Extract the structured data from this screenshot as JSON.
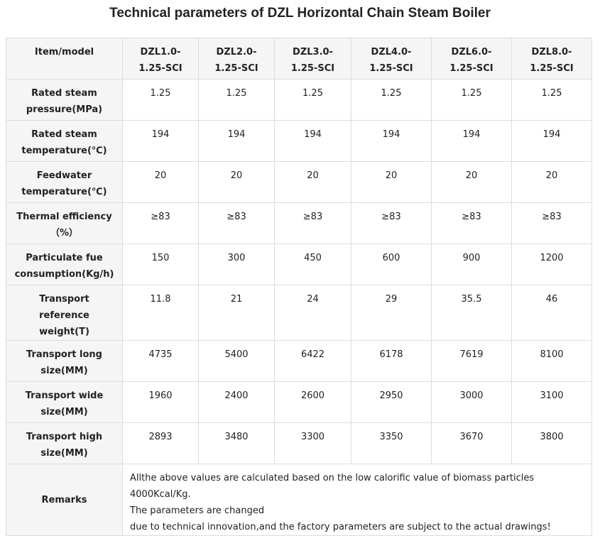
{
  "title": "Technical parameters of DZL Horizontal Chain Steam Boiler",
  "table": {
    "header": [
      "Item/model",
      "DZL1.0-1.25-SCI",
      "DZL2.0-1.25-SCI",
      "DZL3.0-1.25-SCI",
      "DZL4.0-1.25-SCI",
      "DZL6.0-1.25-SCI",
      "DZL8.0-1.25-SCI"
    ],
    "rows": [
      [
        "Rated steam pressure(MPa)",
        "1.25",
        "1.25",
        "1.25",
        "1.25",
        "1.25",
        "1.25"
      ],
      [
        "Rated steam temperature(℃)",
        "194",
        "194",
        "194",
        "194",
        "194",
        "194"
      ],
      [
        "Feedwater temperature(℃)",
        "20",
        "20",
        "20",
        "20",
        "20",
        "20"
      ],
      [
        "Thermal efficiency（%）",
        "≥83",
        "≥83",
        "≥83",
        "≥83",
        "≥83",
        "≥83"
      ],
      [
        "Particulate fue consumption(Kg/h)",
        "150",
        "300",
        "450",
        "600",
        "900",
        "1200"
      ],
      [
        "Transport reference weight(T)",
        "11.8",
        "21",
        "24",
        "29",
        "35.5",
        "46"
      ],
      [
        "Transport long size(MM)",
        "4735",
        "5400",
        "6422",
        "6178",
        "7619",
        "8100"
      ],
      [
        "Transport wide size(MM)",
        "1960",
        "2400",
        "2600",
        "2950",
        "3000",
        "3100"
      ],
      [
        "Transport high size(MM)",
        "2893",
        "3480",
        "3300",
        "3350",
        "3670",
        "3800"
      ]
    ],
    "remarks": {
      "label": "Remarks",
      "lines": [
        "Allthe above values are calculated based on the low calorific value of biomass particles 4000Kcal/Kg.",
        "The parameters are changed",
        "due to technical innovation,and the factory parameters are subject to the actual drawings!"
      ]
    }
  }
}
